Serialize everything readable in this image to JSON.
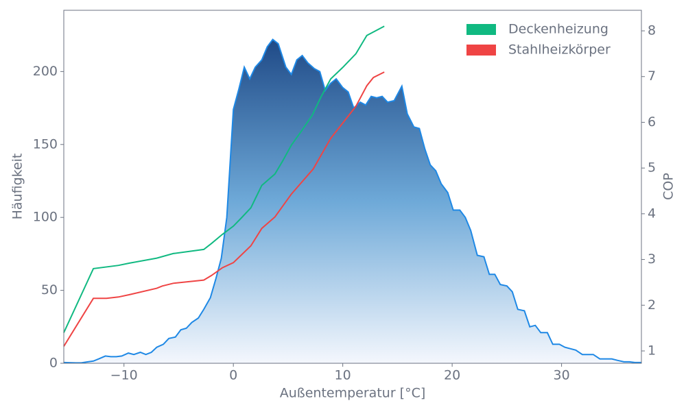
{
  "chart_data": {
    "type": "area",
    "x_label": "Außentemperatur [°C]",
    "y_label": "Häufigkeit",
    "y2_label": "COP",
    "xlim": [
      -15.5,
      37.3
    ],
    "ylim": [
      0,
      242
    ],
    "y2lim": [
      0.73,
      8.45
    ],
    "xticks": [
      {
        "value": -10,
        "label": "−10"
      },
      0,
      10,
      20,
      30
    ],
    "yticks": [
      0,
      50,
      100,
      150,
      200
    ],
    "y2ticks": [
      1,
      2,
      3,
      4,
      5,
      6,
      7,
      8
    ],
    "legend": "upper right",
    "series": [
      {
        "type": "area",
        "color": "#1e88e5",
        "x": [
          -15.5,
          -14.4,
          -13.9,
          -13.3,
          -12.8,
          -12.3,
          -11.7,
          -11.2,
          -10.7,
          -10.2,
          -9.6,
          -9.1,
          -8.5,
          -8.0,
          -7.5,
          -7.0,
          -6.4,
          -5.9,
          -5.3,
          -4.8,
          -4.3,
          -3.8,
          -3.2,
          -2.7,
          -2.1,
          -1.6,
          -1.1,
          -0.6,
          0.0,
          0.5,
          1.0,
          1.5,
          2.0,
          2.6,
          3.1,
          3.6,
          4.1,
          4.8,
          5.3,
          5.8,
          6.3,
          6.8,
          7.4,
          7.9,
          8.4,
          8.9,
          9.4,
          10.0,
          10.5,
          11.0,
          11.6,
          12.1,
          12.6,
          13.1,
          13.6,
          14.1,
          14.7,
          15.4,
          15.9,
          16.5,
          17.0,
          17.5,
          18.0,
          18.5,
          19.0,
          19.6,
          20.1,
          20.7,
          21.2,
          21.7,
          22.3,
          22.9,
          23.4,
          23.9,
          24.4,
          25.0,
          25.5,
          26.0,
          26.6,
          27.1,
          27.6,
          28.1,
          28.7,
          29.2,
          29.8,
          30.3,
          30.8,
          31.3,
          31.9,
          32.4,
          32.9,
          33.5,
          34.0,
          34.6,
          35.1,
          35.7,
          36.2,
          36.7,
          37.3
        ],
        "values": [
          0.5,
          0.3,
          0.3,
          1,
          1.5,
          3,
          5,
          4.5,
          4.5,
          5,
          7,
          6,
          7.5,
          6,
          7.5,
          11,
          13,
          17,
          18,
          23,
          24,
          28,
          31,
          37,
          45,
          58,
          72,
          100,
          174,
          188,
          203,
          195,
          203,
          208,
          217,
          222,
          219,
          203,
          198,
          208,
          211,
          206,
          202,
          200,
          187,
          192,
          195,
          189,
          186,
          175,
          179,
          177,
          183,
          182,
          183,
          179,
          180,
          190,
          171,
          162,
          161,
          147,
          136,
          132,
          123,
          117,
          105,
          105,
          100,
          91,
          74,
          73,
          61,
          61,
          54,
          53,
          49,
          37,
          36,
          25,
          26,
          21,
          21,
          13,
          13,
          11,
          10,
          9,
          6,
          6,
          6,
          3,
          3,
          3,
          2,
          1,
          1,
          0.5,
          0.5
        ]
      },
      {
        "type": "line",
        "axis": "y2",
        "name": "Deckenheizung",
        "color": "#10b981",
        "x": [
          -15.5,
          -12.8,
          -10.5,
          -9.5,
          -7,
          -5.5,
          -2.7,
          -2,
          -1,
          0,
          0.7,
          1.6,
          2.6,
          3.8,
          4.5,
          5.3,
          6.2,
          7.2,
          8,
          8.9,
          10,
          11.2,
          12.2,
          13.8
        ],
        "values": [
          1.4,
          2.8,
          2.87,
          2.92,
          3.03,
          3.13,
          3.22,
          3.35,
          3.55,
          3.73,
          3.9,
          4.13,
          4.62,
          4.87,
          5.15,
          5.5,
          5.8,
          6.15,
          6.55,
          6.95,
          7.2,
          7.5,
          7.9,
          8.1
        ]
      },
      {
        "type": "line",
        "axis": "y2",
        "name": "Stahlheizkörper",
        "color": "#ef4444",
        "x": [
          -15.5,
          -12.8,
          -11.6,
          -10.5,
          -9.5,
          -7,
          -6.5,
          -5.5,
          -2.7,
          -2,
          -1,
          0,
          1.6,
          2.6,
          3.8,
          5.3,
          7.3,
          8.9,
          11.2,
          12.2,
          12.8,
          13.8
        ],
        "values": [
          1.1,
          2.15,
          2.15,
          2.18,
          2.23,
          2.37,
          2.42,
          2.48,
          2.55,
          2.65,
          2.82,
          2.93,
          3.3,
          3.68,
          3.93,
          4.43,
          4.98,
          5.65,
          6.35,
          6.8,
          6.98,
          7.1
        ]
      }
    ]
  }
}
